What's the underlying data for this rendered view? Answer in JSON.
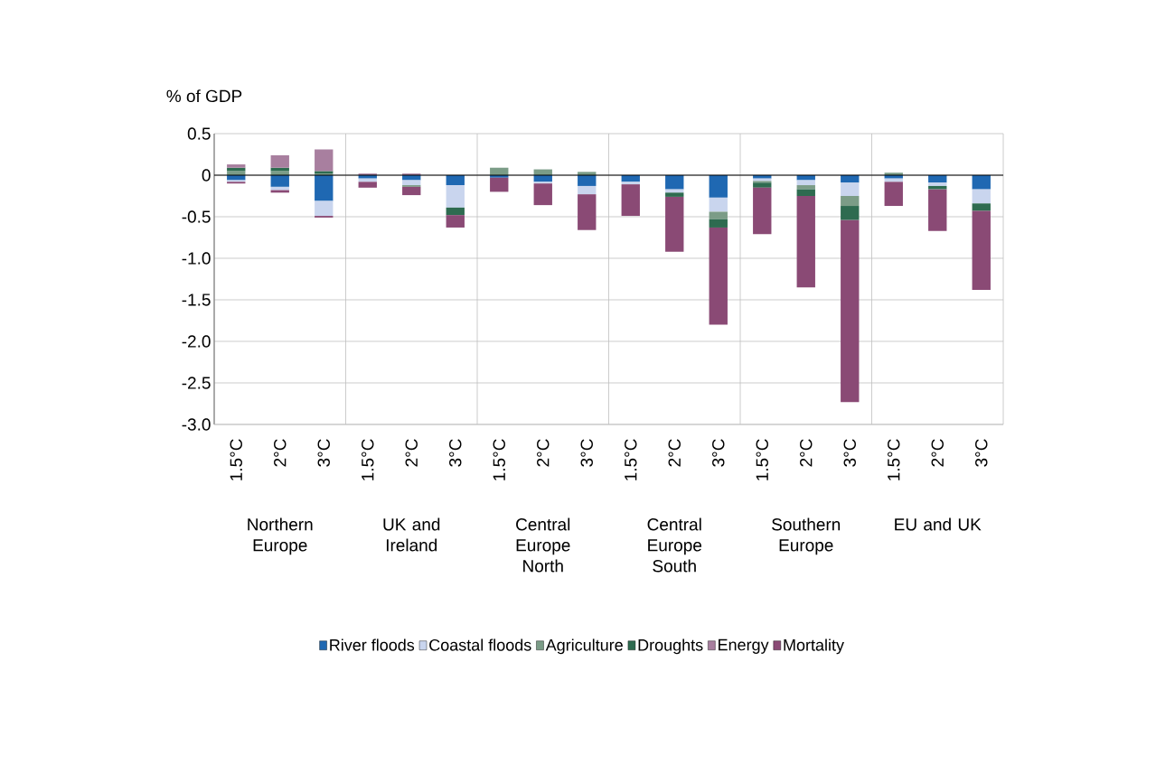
{
  "chart_data": {
    "type": "bar",
    "stacked": true,
    "ylabel": "% of GDP",
    "categories": [
      "1.5°C",
      "2°C",
      "3°C",
      "1.5°C",
      "2°C",
      "3°C",
      "1.5°C",
      "2°C",
      "3°C",
      "1.5°C",
      "2°C",
      "3°C",
      "1.5°C",
      "2°C",
      "3°C",
      "1.5°C",
      "2°C",
      "3°C"
    ],
    "annotations": [
      "Northern Europe",
      "UK and Ireland",
      "Central Europe North",
      "Central Europe South",
      "Southern Europe",
      "EU and UK"
    ],
    "series": [
      {
        "name": "River floods",
        "color": "#1f68b2",
        "values": [
          -0.06,
          -0.14,
          -0.31,
          -0.04,
          -0.06,
          -0.12,
          -0.03,
          -0.08,
          -0.13,
          -0.08,
          -0.17,
          -0.27,
          -0.04,
          -0.06,
          -0.09,
          -0.04,
          -0.09,
          -0.17
        ]
      },
      {
        "name": "Coastal floods",
        "color": "#c9d5ee",
        "values": [
          -0.02,
          -0.04,
          -0.18,
          -0.04,
          -0.06,
          -0.27,
          null,
          -0.02,
          -0.1,
          -0.03,
          -0.04,
          -0.17,
          -0.03,
          -0.06,
          -0.16,
          -0.04,
          -0.04,
          -0.17
        ]
      },
      {
        "name": "Agriculture",
        "color": "#7b9c87",
        "values": [
          0.05,
          0.05,
          0.02,
          null,
          -0.02,
          null,
          0.09,
          0.07,
          0.04,
          null,
          null,
          -0.09,
          -0.02,
          -0.05,
          -0.12,
          0.03,
          null,
          null
        ]
      },
      {
        "name": "Droughts",
        "color": "#2e6b50",
        "values": [
          0.04,
          0.04,
          0.03,
          null,
          null,
          -0.09,
          null,
          null,
          null,
          null,
          -0.05,
          -0.1,
          -0.06,
          -0.08,
          -0.17,
          null,
          -0.04,
          -0.09
        ]
      },
      {
        "name": "Energy",
        "color": "#a87f9f",
        "values": [
          0.04,
          0.15,
          0.26,
          0.02,
          0.02,
          null,
          null,
          null,
          null,
          null,
          null,
          null,
          null,
          null,
          null,
          null,
          null,
          null
        ]
      },
      {
        "name": "Mortality",
        "color": "#8a4a75",
        "values": [
          -0.02,
          -0.03,
          -0.02,
          -0.07,
          -0.1,
          -0.15,
          -0.17,
          -0.26,
          -0.43,
          -0.38,
          -0.66,
          -1.17,
          -0.56,
          -1.1,
          -2.19,
          -0.29,
          -0.5,
          -0.95
        ]
      }
    ],
    "ylim": [
      -3.0,
      0.5
    ],
    "yticks": [
      0.5,
      0,
      -0.5,
      {
        "value": -1,
        "label": "-1.0"
      },
      -1.5,
      {
        "value": -2,
        "label": "-2.0"
      },
      -2.5,
      {
        "value": -3,
        "label": "-3.0"
      }
    ],
    "grid": "y",
    "legend": "bottom"
  }
}
